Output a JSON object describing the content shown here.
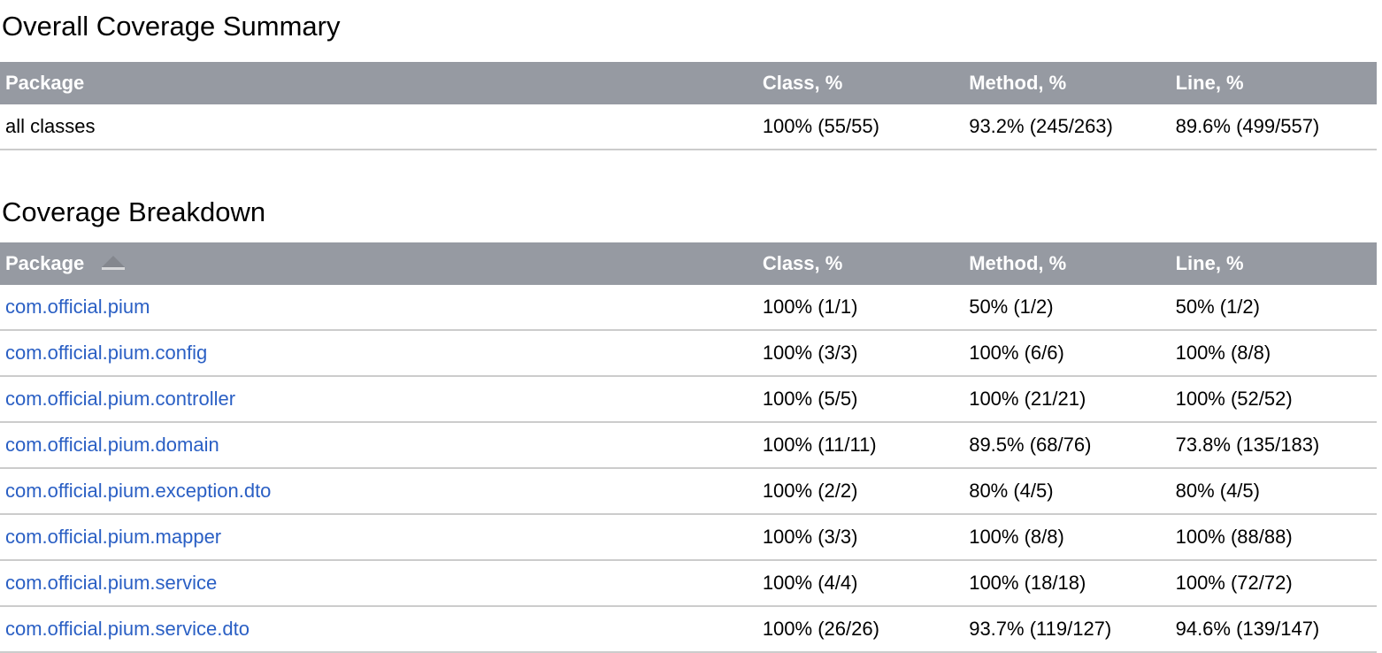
{
  "colors": {
    "header_bg": "#969aa2",
    "link": "#2a5fc4",
    "row_border": "#cccccc"
  },
  "summary": {
    "heading": "Overall Coverage Summary",
    "columns": [
      "Package",
      "Class, %",
      "Method, %",
      "Line, %"
    ],
    "rows": [
      {
        "package": "all classes",
        "class": "100% (55/55)",
        "method": "93.2% (245/263)",
        "line": "89.6% (499/557)"
      }
    ]
  },
  "breakdown": {
    "heading": "Coverage Breakdown",
    "columns": [
      "Package",
      "Class, %",
      "Method, %",
      "Line, %"
    ],
    "sort_column": "Package",
    "sort_direction": "ascending",
    "rows": [
      {
        "package": "com.official.pium",
        "class": "100% (1/1)",
        "method": "50% (1/2)",
        "line": "50% (1/2)"
      },
      {
        "package": "com.official.pium.config",
        "class": "100% (3/3)",
        "method": "100% (6/6)",
        "line": "100% (8/8)"
      },
      {
        "package": "com.official.pium.controller",
        "class": "100% (5/5)",
        "method": "100% (21/21)",
        "line": "100% (52/52)"
      },
      {
        "package": "com.official.pium.domain",
        "class": "100% (11/11)",
        "method": "89.5% (68/76)",
        "line": "73.8% (135/183)"
      },
      {
        "package": "com.official.pium.exception.dto",
        "class": "100% (2/2)",
        "method": "80% (4/5)",
        "line": "80% (4/5)"
      },
      {
        "package": "com.official.pium.mapper",
        "class": "100% (3/3)",
        "method": "100% (8/8)",
        "line": "100% (88/88)"
      },
      {
        "package": "com.official.pium.service",
        "class": "100% (4/4)",
        "method": "100% (18/18)",
        "line": "100% (72/72)"
      },
      {
        "package": "com.official.pium.service.dto",
        "class": "100% (26/26)",
        "method": "93.7% (119/127)",
        "line": "94.6% (139/147)"
      }
    ]
  }
}
